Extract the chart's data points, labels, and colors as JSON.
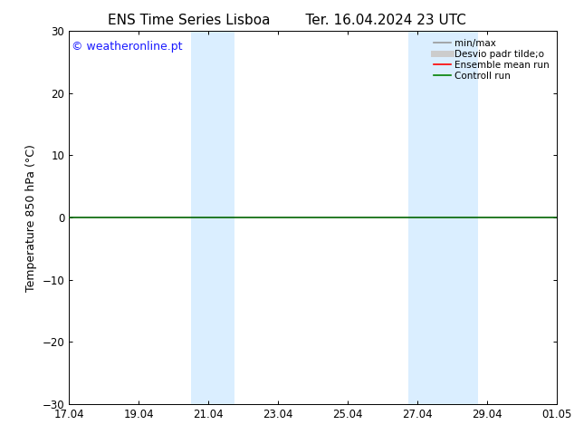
{
  "title_left": "ENS Time Series Lisboa",
  "title_right": "Ter. 16.04.2024 23 UTC",
  "ylabel": "Temperature 850 hPa (°C)",
  "ylim": [
    -30,
    30
  ],
  "yticks": [
    -30,
    -20,
    -10,
    0,
    10,
    20,
    30
  ],
  "xtick_labels": [
    "17.04",
    "19.04",
    "21.04",
    "23.04",
    "25.04",
    "27.04",
    "29.04",
    "01.05"
  ],
  "xtick_positions": [
    0,
    2,
    4,
    6,
    8,
    10,
    12,
    14
  ],
  "xlim": [
    0,
    14
  ],
  "shaded_regions": [
    {
      "xstart": 3.5,
      "xend": 4.75
    },
    {
      "xstart": 9.75,
      "xend": 11.75
    }
  ],
  "zeroline_y": 0,
  "watermark_text": "© weatheronline.pt",
  "watermark_color": "#1a1aff",
  "background_color": "#ffffff",
  "plot_bg_color": "#ffffff",
  "shade_color": "#daeeff",
  "legend_entries": [
    {
      "label": "min/max",
      "color": "#999999",
      "lw": 1.2
    },
    {
      "label": "Desvio padr tilde;o",
      "color": "#cccccc",
      "lw": 5
    },
    {
      "label": "Ensemble mean run",
      "color": "#ff0000",
      "lw": 1.2
    },
    {
      "label": "Controll run",
      "color": "#008000",
      "lw": 1.2
    }
  ],
  "zeroline_color": "#006400",
  "zeroline_lw": 1.2,
  "title_fontsize": 11,
  "tick_fontsize": 8.5,
  "label_fontsize": 9,
  "watermark_fontsize": 9,
  "legend_fontsize": 7.5
}
